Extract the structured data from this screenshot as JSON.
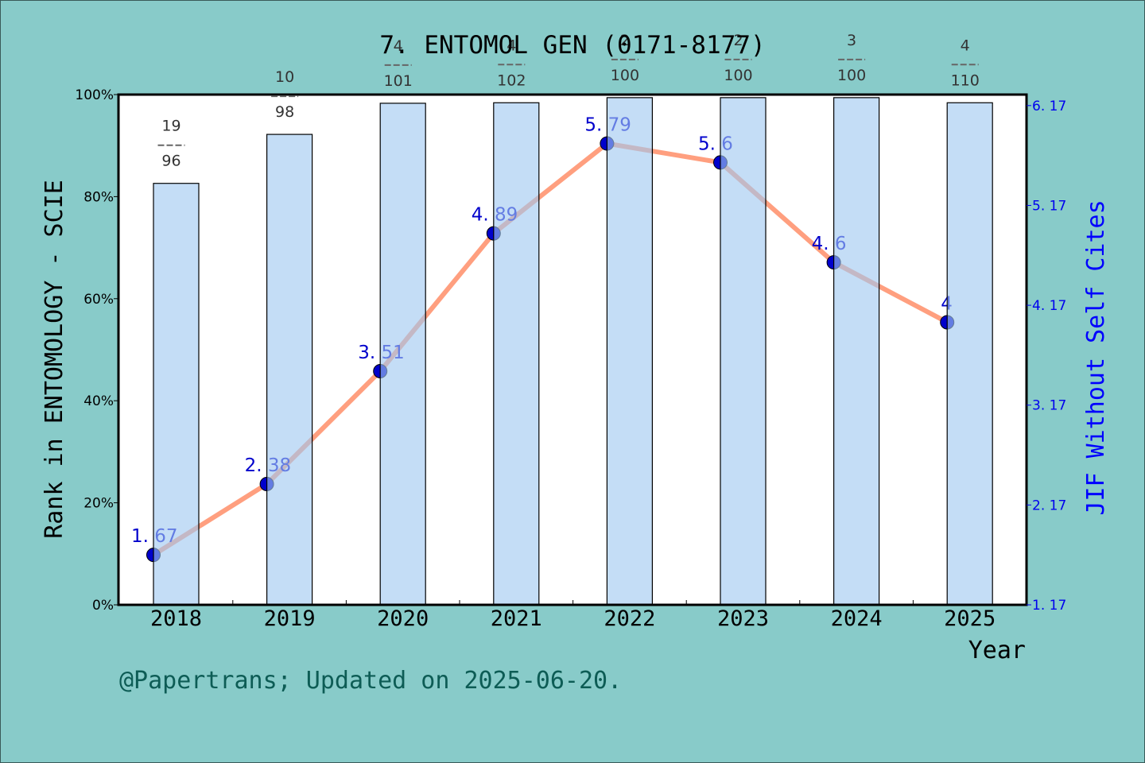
{
  "page": {
    "title": "7. ENTOMOL GEN (0171-8177)",
    "footer": "@Papertrans; Updated on 2025-06-20.",
    "background": "#88cbc9"
  },
  "chart_data": {
    "type": "bar+line",
    "title": "7. ENTOMOL GEN (0171-8177)",
    "xlabel": "Year",
    "ylabel_left": "Rank in ENTOMOLOGY - SCIE",
    "ylabel_right": "JIF Without Self Cites",
    "categories": [
      "2018",
      "2019",
      "2020",
      "2021",
      "2022",
      "2023",
      "2024",
      "2025"
    ],
    "series": [
      {
        "name": "Rank percentile (bar)",
        "axis": "left",
        "type": "bar",
        "color": "#c5e0f7",
        "values": [
          82.6,
          92.2,
          98.3,
          98.4,
          99.4,
          99.4,
          99.4,
          98.4
        ]
      },
      {
        "name": "JIF Without Self Cites (line)",
        "axis": "right",
        "type": "line",
        "color": "#ff9f7f",
        "marker_color": "#0000cc",
        "values": [
          1.67,
          2.38,
          3.51,
          4.89,
          5.79,
          5.6,
          4.6,
          4.0
        ],
        "labels": [
          "1.67",
          "2.38",
          "3.51",
          "4.89",
          "5.79",
          "5.6",
          "4.6",
          "4"
        ]
      }
    ],
    "rank_labels": [
      {
        "rank": "19",
        "total": "96"
      },
      {
        "rank": "10",
        "total": "98"
      },
      {
        "rank": "4",
        "total": "101"
      },
      {
        "rank": "4",
        "total": "102"
      },
      {
        "rank": "2",
        "total": "100"
      },
      {
        "rank": "2",
        "total": "100"
      },
      {
        "rank": "3",
        "total": "100"
      },
      {
        "rank": "4",
        "total": "110"
      }
    ],
    "left_axis": {
      "ylim": [
        0,
        100
      ],
      "ticks": [
        "0%",
        "20%",
        "40%",
        "60%",
        "80%",
        "100%"
      ]
    },
    "right_axis": {
      "ylim": [
        1.17,
        6.28
      ],
      "ticks": [
        "1. 17",
        "2. 17",
        "3. 17",
        "4. 17",
        "5. 17",
        "6. 17"
      ],
      "tick_values": [
        1.17,
        2.17,
        3.17,
        4.17,
        5.17,
        6.17
      ],
      "color": "#0000ff"
    },
    "grid": false,
    "legend": "none"
  }
}
